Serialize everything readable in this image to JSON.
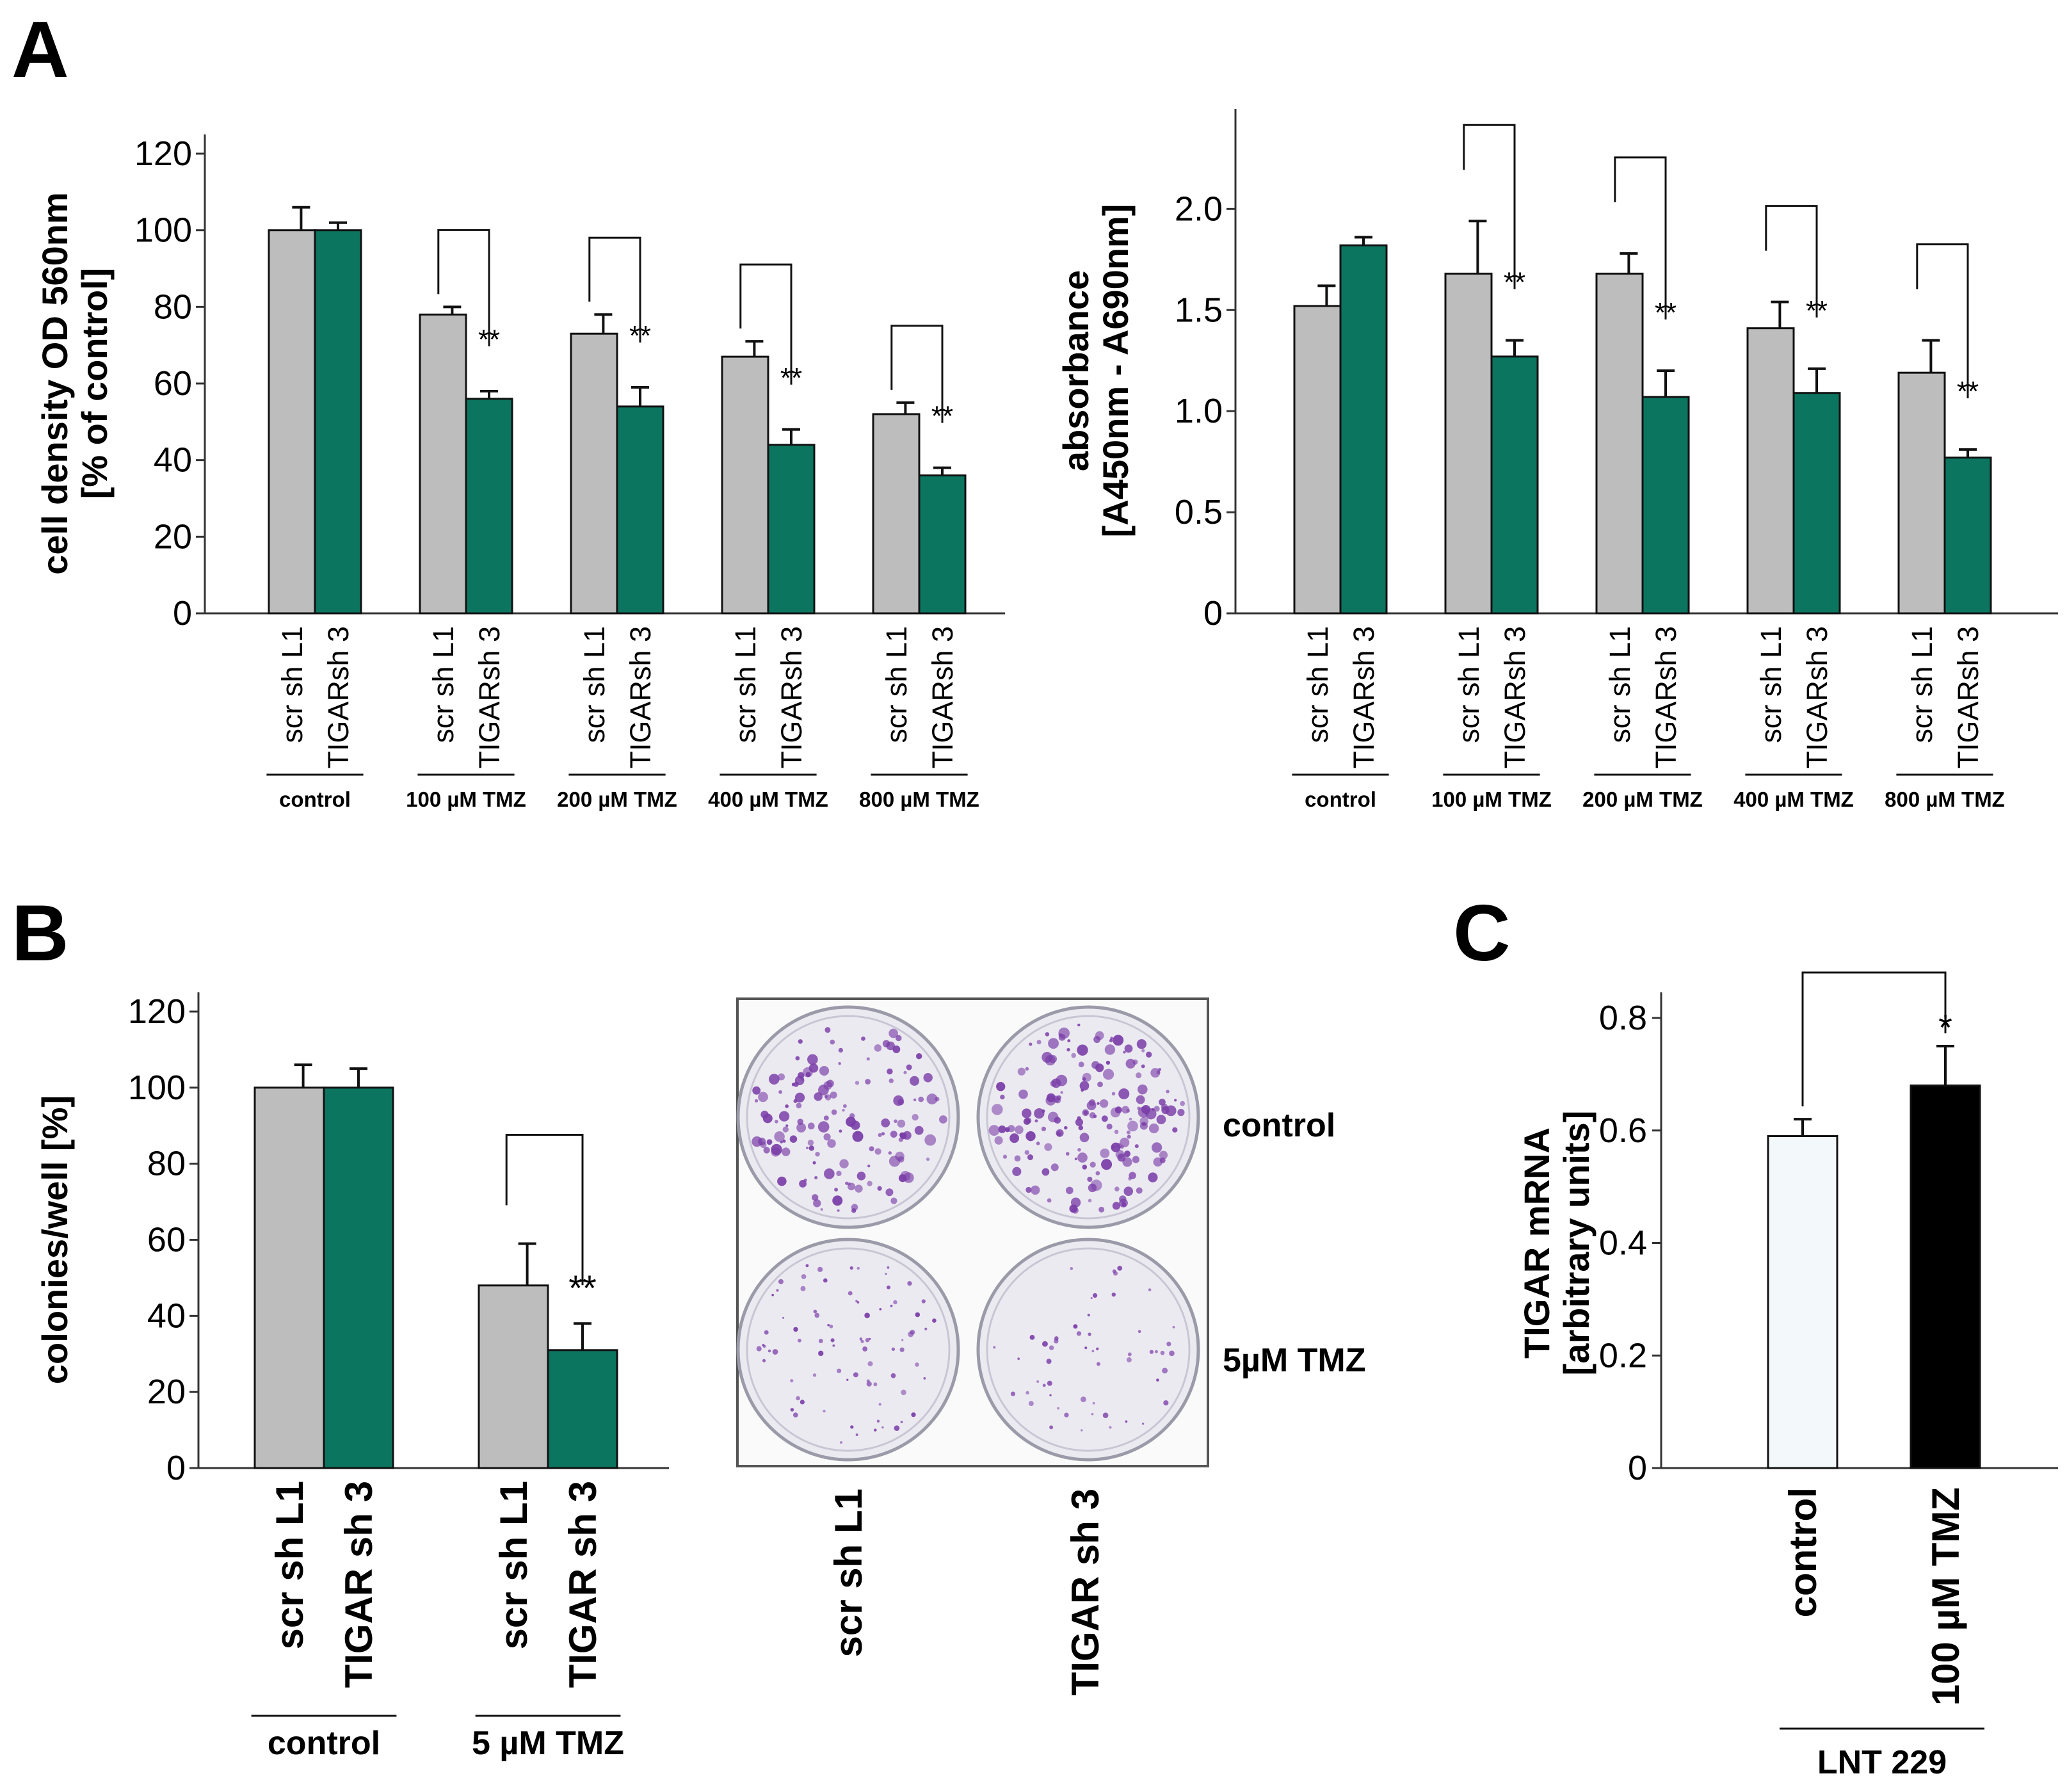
{
  "panels": {
    "a": "A",
    "b": "B",
    "c": "C"
  },
  "colors": {
    "scr": "#bdbdbd",
    "tigar": "#0b7560",
    "control_c": "#f3f9fa",
    "tmz_c": "#000000",
    "plate": "#eceaf1",
    "colony": "#7a3ea8"
  },
  "chart_data": [
    {
      "id": "A_left",
      "type": "bar",
      "ylabel": "cell density OD 560nm",
      "ylabel2": "[% of control]",
      "ylim": [
        0,
        120
      ],
      "yticks": [
        "0",
        "20",
        "40",
        "60",
        "80",
        "100",
        "120"
      ],
      "groups": [
        "control",
        "100 µM TMZ",
        "200 µM TMZ",
        "400 µM TMZ",
        "800 µM TMZ"
      ],
      "bar_labels": [
        "scr sh L1",
        "TIGARsh 3"
      ],
      "series": [
        {
          "name": "scr sh L1",
          "values": [
            100,
            78,
            73,
            67,
            52
          ],
          "errors": [
            6,
            2,
            5,
            4,
            3
          ]
        },
        {
          "name": "TIGARsh 3",
          "values": [
            100,
            56,
            54,
            44,
            36
          ],
          "errors": [
            2,
            2,
            5,
            4,
            2
          ]
        }
      ],
      "significance": [
        "",
        "**",
        "**",
        "**",
        "**"
      ]
    },
    {
      "id": "A_right",
      "type": "bar",
      "ylabel": "absorbance",
      "ylabel2": "[A450nm - A690nm]",
      "ylim": [
        0,
        2.4
      ],
      "yticks": [
        "0",
        "0.5",
        "1.0",
        "1.5",
        "2.0"
      ],
      "groups": [
        "control",
        "100 µM TMZ",
        "200 µM TMZ",
        "400 µM TMZ",
        "800 µM TMZ"
      ],
      "bar_labels": [
        "scr sh L1",
        "TIGARsh 3"
      ],
      "series": [
        {
          "name": "scr sh L1",
          "values": [
            1.52,
            1.68,
            1.68,
            1.41,
            1.19
          ],
          "errors": [
            0.1,
            0.26,
            0.1,
            0.13,
            0.16
          ]
        },
        {
          "name": "TIGARsh 3",
          "values": [
            1.82,
            1.27,
            1.07,
            1.09,
            0.77
          ],
          "errors": [
            0.04,
            0.08,
            0.13,
            0.12,
            0.04
          ]
        }
      ],
      "significance": [
        "",
        "**",
        "**",
        "**",
        "**"
      ]
    },
    {
      "id": "B",
      "type": "bar",
      "ylabel": "colonies/well [%]",
      "ylim": [
        0,
        120
      ],
      "yticks": [
        "0",
        "20",
        "40",
        "60",
        "80",
        "100",
        "120"
      ],
      "groups": [
        "control",
        "5 µM TMZ"
      ],
      "bar_labels": [
        "scr sh L1",
        "TIGAR sh 3"
      ],
      "series": [
        {
          "name": "scr sh L1",
          "values": [
            100,
            48
          ],
          "errors": [
            6,
            11
          ]
        },
        {
          "name": "TIGAR sh 3",
          "values": [
            100,
            31
          ],
          "errors": [
            5,
            7
          ]
        }
      ],
      "significance": [
        "",
        "**"
      ]
    },
    {
      "id": "C",
      "type": "bar",
      "ylabel": "TIGAR mRNA",
      "ylabel2": "[arbitrary units]",
      "ylim": [
        0,
        0.8
      ],
      "yticks": [
        "0",
        "0.2",
        "0.4",
        "0.6",
        "0.8"
      ],
      "categories": [
        "control",
        "100 µM TMZ"
      ],
      "values": [
        0.59,
        0.68
      ],
      "errors": [
        0.03,
        0.07
      ],
      "group_label": "LNT 229",
      "significance": "*"
    }
  ],
  "plates": {
    "row_labels": [
      "control",
      "5µM TMZ"
    ],
    "column_labels": [
      "scr sh L1",
      "TIGAR sh 3"
    ],
    "density": [
      [
        0.8,
        1.0
      ],
      [
        0.45,
        0.3
      ]
    ]
  }
}
